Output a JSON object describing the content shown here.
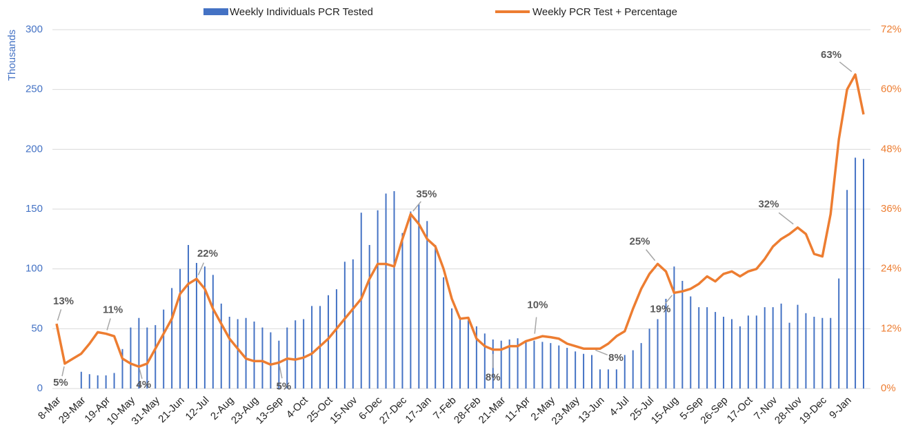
{
  "chart_data": {
    "type": "bar-line",
    "y_label": "Thousands",
    "categories": [
      "8-Mar",
      null,
      null,
      "29-Mar",
      null,
      null,
      "19-Apr",
      null,
      null,
      "10-May",
      null,
      null,
      "31-May",
      null,
      null,
      "21-Jun",
      null,
      null,
      "12-Jul",
      null,
      null,
      "2-Aug",
      null,
      null,
      "23-Aug",
      null,
      null,
      "13-Sep",
      null,
      null,
      "4-Oct",
      null,
      null,
      "25-Oct",
      null,
      null,
      "15-Nov",
      null,
      null,
      "6-Dec",
      null,
      null,
      "27-Dec",
      null,
      null,
      "17-Jan",
      null,
      null,
      "7-Feb",
      null,
      null,
      "28-Feb",
      null,
      null,
      "21-Mar",
      null,
      null,
      "11-Apr",
      null,
      null,
      "2-May",
      null,
      null,
      "23-May",
      null,
      null,
      "13-Jun",
      null,
      null,
      "4-Jul",
      null,
      null,
      "25-Jul",
      null,
      null,
      "15-Aug",
      null,
      null,
      "5-Sep",
      null,
      null,
      "26-Sep",
      null,
      null,
      "17-Oct",
      null,
      null,
      "7-Nov",
      null,
      null,
      "28-Nov",
      null,
      null,
      "19-Dec",
      null,
      null,
      "9-Jan",
      null,
      null
    ],
    "series": [
      {
        "name": "Weekly Individuals PCR Tested",
        "type": "bar",
        "color": "#4472c4",
        "values": [
          0,
          0,
          0,
          14,
          12,
          11,
          11,
          13,
          33,
          51,
          59,
          51,
          53,
          66,
          84,
          100,
          120,
          105,
          102,
          95,
          71,
          60,
          58,
          59,
          56,
          51,
          47,
          40,
          51,
          57,
          58,
          69,
          69,
          78,
          83,
          106,
          108,
          147,
          120,
          149,
          163,
          165,
          130,
          148,
          154,
          140,
          120,
          93,
          67,
          60,
          57,
          52,
          46,
          41,
          40,
          41,
          42,
          40,
          40,
          39,
          38,
          36,
          34,
          31,
          29,
          28,
          16,
          16,
          16,
          28,
          32,
          38,
          50,
          58,
          75,
          102,
          90,
          77,
          68,
          68,
          64,
          60,
          58,
          52,
          61,
          61,
          68,
          68,
          71,
          55,
          70,
          63,
          60,
          59,
          59,
          92,
          166,
          193,
          192
        ]
      },
      {
        "name": "Weekly PCR Test + Percentage",
        "type": "line",
        "color": "#ed7d31",
        "axis": "y2",
        "values": [
          13,
          5,
          6,
          7,
          9,
          11.3,
          11,
          10.5,
          6,
          5,
          4.4,
          5,
          8,
          11,
          14,
          19,
          21,
          22,
          20,
          16,
          13,
          10,
          8,
          6,
          5.5,
          5.5,
          4.8,
          5.2,
          6,
          5.8,
          6.2,
          7,
          8.5,
          10,
          12,
          14,
          16,
          18,
          22,
          25,
          25,
          24.5,
          30,
          35,
          33,
          30,
          28.5,
          24,
          18,
          14,
          14.2,
          10,
          8.5,
          7.8,
          7.8,
          8.5,
          8.5,
          9.5,
          10,
          10.5,
          10.3,
          10,
          9,
          8.5,
          8,
          8,
          8,
          9,
          10.5,
          11.5,
          16,
          20,
          23,
          25,
          23.5,
          19.2,
          19.5,
          20,
          21,
          22.5,
          21.5,
          23,
          23.5,
          22.5,
          23.5,
          24,
          26,
          28.5,
          30,
          31,
          32.3,
          31,
          27,
          26.5,
          35,
          50,
          60,
          63,
          55
        ],
        "value_labels": [
          "13%",
          "5%",
          null,
          null,
          null,
          null,
          "11%",
          null,
          null,
          null,
          "4%",
          null,
          null,
          null,
          null,
          null,
          null,
          "22%",
          null,
          null,
          null,
          null,
          null,
          null,
          null,
          null,
          null,
          "5%",
          null,
          null,
          null,
          null,
          null,
          null,
          null,
          null,
          null,
          null,
          null,
          null,
          null,
          null,
          null,
          "35%",
          null,
          null,
          null,
          null,
          null,
          null,
          null,
          null,
          null,
          "8%",
          null,
          null,
          null,
          null,
          "10%",
          null,
          null,
          null,
          null,
          null,
          null,
          "8%",
          null,
          null,
          null,
          null,
          null,
          null,
          null,
          "25%",
          null,
          "19%",
          null,
          null,
          null,
          null,
          null,
          null,
          null,
          null,
          null,
          null,
          null,
          null,
          null,
          null,
          "32%",
          null,
          null,
          null,
          null,
          null,
          null,
          "63%",
          null
        ]
      }
    ],
    "ylim": [
      0,
      300
    ],
    "yticks": [
      0,
      50,
      100,
      150,
      200,
      250,
      300
    ],
    "y2lim": [
      0,
      72
    ],
    "y2ticks": [
      {
        "value": 0,
        "label": "0%"
      },
      {
        "value": 12,
        "label": "12%"
      },
      {
        "value": 24,
        "label": "24%"
      },
      {
        "value": 36,
        "label": "36%"
      },
      {
        "value": 48,
        "label": "48%"
      },
      {
        "value": 60,
        "label": "60%"
      },
      {
        "value": 72,
        "label": "72%"
      }
    ],
    "grid": true,
    "legend": "top"
  }
}
